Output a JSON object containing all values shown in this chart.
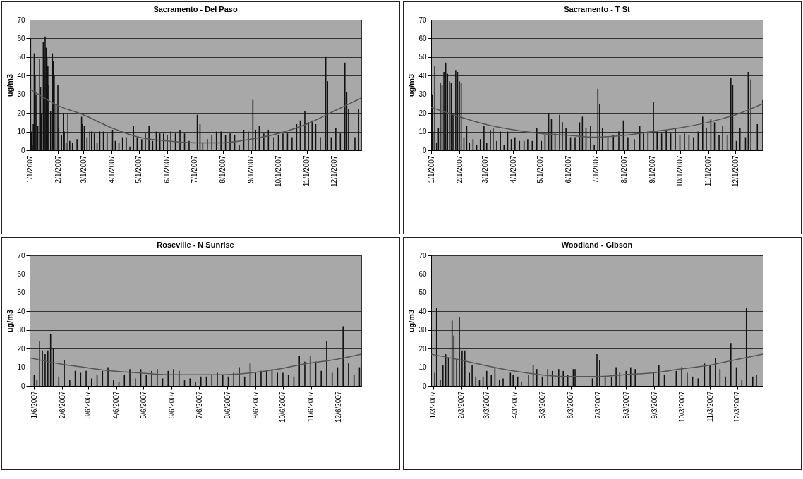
{
  "chart_data": [
    {
      "type": "bar",
      "title": "Sacramento - Del Paso",
      "ylabel": "ug/m3",
      "xlim": [
        "2007-01-01",
        "2007-12-31"
      ],
      "xticks": [
        {
          "value": "2007-01-01",
          "label": "1/1/2007"
        },
        {
          "value": "2007-02-01",
          "label": "2/1/2007"
        },
        {
          "value": "2007-03-01",
          "label": "3/1/2007"
        },
        {
          "value": "2007-04-01",
          "label": "4/1/2007"
        },
        {
          "value": "2007-05-01",
          "label": "5/1/2007"
        },
        {
          "value": "2007-06-01",
          "label": "6/1/2007"
        },
        {
          "value": "2007-07-01",
          "label": "7/1/2007"
        },
        {
          "value": "2007-08-01",
          "label": "8/1/2007"
        },
        {
          "value": "2007-09-01",
          "label": "9/1/2007"
        },
        {
          "value": "2007-10-01",
          "label": "10/1/2007"
        },
        {
          "value": "2007-11-01",
          "label": "11/1/2007"
        },
        {
          "value": "2007-12-01",
          "label": "12/1/2007"
        }
      ],
      "ylim": [
        0,
        70
      ],
      "yticks": [
        0,
        10,
        20,
        30,
        40,
        50,
        60,
        70
      ],
      "grid": "y",
      "x": [
        "2007-01-02",
        "2007-01-03",
        "2007-01-04",
        "2007-01-05",
        "2007-01-06",
        "2007-01-07",
        "2007-01-08",
        "2007-01-10",
        "2007-01-12",
        "2007-01-13",
        "2007-01-14",
        "2007-01-16",
        "2007-01-17",
        "2007-01-18",
        "2007-01-19",
        "2007-01-20",
        "2007-01-21",
        "2007-01-22",
        "2007-01-24",
        "2007-01-26",
        "2007-01-27",
        "2007-01-28",
        "2007-01-30",
        "2007-02-01",
        "2007-02-02",
        "2007-02-05",
        "2007-02-07",
        "2007-02-08",
        "2007-02-10",
        "2007-02-12",
        "2007-02-14",
        "2007-02-17",
        "2007-02-22",
        "2007-02-27",
        "2007-02-28",
        "2007-03-02",
        "2007-03-05",
        "2007-03-08",
        "2007-03-10",
        "2007-03-13",
        "2007-03-16",
        "2007-03-19",
        "2007-03-23",
        "2007-03-27",
        "2007-04-02",
        "2007-04-05",
        "2007-04-09",
        "2007-04-13",
        "2007-04-17",
        "2007-04-21",
        "2007-04-25",
        "2007-04-29",
        "2007-05-04",
        "2007-05-08",
        "2007-05-12",
        "2007-05-16",
        "2007-05-20",
        "2007-05-24",
        "2007-05-28",
        "2007-06-01",
        "2007-06-05",
        "2007-06-10",
        "2007-06-15",
        "2007-06-20",
        "2007-06-25",
        "2007-07-04",
        "2007-07-07",
        "2007-07-10",
        "2007-07-15",
        "2007-07-20",
        "2007-07-25",
        "2007-07-30",
        "2007-08-04",
        "2007-08-09",
        "2007-08-14",
        "2007-08-19",
        "2007-08-24",
        "2007-08-29",
        "2007-09-03",
        "2007-09-06",
        "2007-09-10",
        "2007-09-15",
        "2007-09-20",
        "2007-09-26",
        "2007-10-01",
        "2007-10-06",
        "2007-10-11",
        "2007-10-16",
        "2007-10-21",
        "2007-10-25",
        "2007-10-30",
        "2007-11-03",
        "2007-11-07",
        "2007-11-11",
        "2007-11-16",
        "2007-11-22",
        "2007-11-24",
        "2007-11-28",
        "2007-12-03",
        "2007-12-08",
        "2007-12-13",
        "2007-12-15",
        "2007-12-17",
        "2007-12-24",
        "2007-12-28",
        "2007-12-31"
      ],
      "series": [
        {
          "color": "#111111",
          "values": [
            60,
            10,
            3,
            14,
            52,
            40,
            30,
            13,
            49,
            34,
            20,
            58,
            48,
            61,
            55,
            50,
            45,
            35,
            21,
            52,
            48,
            40,
            25,
            35,
            12,
            8,
            20,
            10,
            4,
            20,
            5,
            4,
            6,
            18,
            14,
            13,
            7,
            10,
            10,
            9,
            4,
            10,
            10,
            9,
            11,
            5,
            4,
            7,
            7,
            2,
            13,
            7,
            6,
            9,
            13,
            5,
            10,
            9,
            9,
            8,
            10,
            9,
            11,
            9,
            5,
            19,
            14,
            4,
            6,
            8,
            10,
            10,
            8,
            9,
            8,
            3,
            11,
            10,
            27,
            11,
            13,
            9,
            11,
            7,
            8,
            9,
            9,
            7,
            14,
            16,
            21,
            15,
            16,
            14,
            7,
            50,
            37,
            7,
            12,
            9,
            47,
            31,
            22,
            7,
            22,
            18
          ]
        },
        {
          "type": "line",
          "color": "#555555",
          "x": [
            "2007-01-01",
            "2007-02-01",
            "2007-03-01",
            "2007-04-01",
            "2007-05-01",
            "2007-06-01",
            "2007-07-01",
            "2007-08-01",
            "2007-09-01",
            "2007-10-01",
            "2007-11-01",
            "2007-12-01",
            "2007-12-31"
          ],
          "values": [
            33,
            24,
            19,
            12,
            7,
            5,
            4,
            4,
            6,
            9,
            14,
            21,
            28
          ]
        }
      ]
    },
    {
      "type": "bar",
      "title": "Sacramento - T St",
      "ylabel": "ug/m3",
      "xlim": [
        "2007-01-01",
        "2007-12-31"
      ],
      "xticks": [
        {
          "value": "2007-01-01",
          "label": "1/1/2007"
        },
        {
          "value": "2007-02-01",
          "label": "2/1/2007"
        },
        {
          "value": "2007-03-01",
          "label": "3/1/2007"
        },
        {
          "value": "2007-04-01",
          "label": "4/1/2007"
        },
        {
          "value": "2007-05-01",
          "label": "5/1/2007"
        },
        {
          "value": "2007-06-01",
          "label": "6/1/2007"
        },
        {
          "value": "2007-07-01",
          "label": "7/1/2007"
        },
        {
          "value": "2007-08-01",
          "label": "8/1/2007"
        },
        {
          "value": "2007-09-01",
          "label": "9/1/2007"
        },
        {
          "value": "2007-10-01",
          "label": "10/1/2007"
        },
        {
          "value": "2007-11-01",
          "label": "11/1/2007"
        },
        {
          "value": "2007-12-01",
          "label": "12/1/2007"
        }
      ],
      "ylim": [
        0,
        70
      ],
      "yticks": [
        0,
        10,
        20,
        30,
        40,
        50,
        60,
        70
      ],
      "grid": "y",
      "x": [
        "2007-01-02",
        "2007-01-03",
        "2007-01-05",
        "2007-01-07",
        "2007-01-09",
        "2007-01-11",
        "2007-01-13",
        "2007-01-15",
        "2007-01-17",
        "2007-01-19",
        "2007-01-21",
        "2007-01-23",
        "2007-01-25",
        "2007-01-28",
        "2007-01-30",
        "2007-02-01",
        "2007-02-03",
        "2007-02-06",
        "2007-02-09",
        "2007-02-12",
        "2007-02-16",
        "2007-02-20",
        "2007-02-24",
        "2007-02-28",
        "2007-03-03",
        "2007-03-07",
        "2007-03-10",
        "2007-03-14",
        "2007-03-18",
        "2007-03-22",
        "2007-03-26",
        "2007-03-30",
        "2007-04-03",
        "2007-04-08",
        "2007-04-13",
        "2007-04-17",
        "2007-04-22",
        "2007-04-27",
        "2007-05-02",
        "2007-05-06",
        "2007-05-10",
        "2007-05-13",
        "2007-05-17",
        "2007-05-22",
        "2007-05-25",
        "2007-05-29",
        "2007-06-03",
        "2007-06-08",
        "2007-06-13",
        "2007-06-16",
        "2007-06-20",
        "2007-06-25",
        "2007-06-29",
        "2007-07-03",
        "2007-07-05",
        "2007-07-08",
        "2007-07-14",
        "2007-07-20",
        "2007-07-26",
        "2007-07-31",
        "2007-08-05",
        "2007-08-12",
        "2007-08-18",
        "2007-08-22",
        "2007-08-27",
        "2007-09-02",
        "2007-09-06",
        "2007-09-11",
        "2007-09-16",
        "2007-09-21",
        "2007-09-26",
        "2007-10-01",
        "2007-10-06",
        "2007-10-11",
        "2007-10-16",
        "2007-10-21",
        "2007-10-26",
        "2007-10-30",
        "2007-11-04",
        "2007-11-08",
        "2007-11-13",
        "2007-11-17",
        "2007-11-22",
        "2007-11-26",
        "2007-11-28",
        "2007-12-02",
        "2007-12-06",
        "2007-12-12",
        "2007-12-15",
        "2007-12-18",
        "2007-12-25",
        "2007-12-31"
      ],
      "series": [
        {
          "color": "#111111",
          "values": [
            30,
            10,
            45,
            4,
            12,
            36,
            35,
            42,
            47,
            41,
            37,
            36,
            20,
            43,
            42,
            37,
            36,
            7,
            13,
            4,
            6,
            3,
            6,
            13,
            4,
            11,
            12,
            5,
            10,
            3,
            10,
            6,
            7,
            5,
            5,
            6,
            5,
            12,
            5,
            8,
            20,
            17,
            9,
            19,
            15,
            12,
            7,
            7,
            15,
            18,
            12,
            13,
            3,
            33,
            25,
            12,
            7,
            8,
            10,
            16,
            7,
            6,
            13,
            9,
            10,
            26,
            10,
            9,
            11,
            9,
            12,
            8,
            9,
            8,
            7,
            10,
            18,
            12,
            17,
            15,
            8,
            13,
            8,
            39,
            35,
            5,
            12,
            7,
            42,
            38,
            14,
            27
          ]
        },
        {
          "type": "line",
          "color": "#555555",
          "x": [
            "2007-01-01",
            "2007-02-01",
            "2007-03-01",
            "2007-04-01",
            "2007-05-01",
            "2007-06-01",
            "2007-07-01",
            "2007-08-01",
            "2007-09-01",
            "2007-10-01",
            "2007-11-01",
            "2007-12-01",
            "2007-12-31"
          ],
          "values": [
            23,
            18,
            14,
            11,
            9,
            8,
            7,
            8,
            10,
            12,
            15,
            19,
            25
          ]
        }
      ]
    },
    {
      "type": "bar",
      "title": "Roseville - N Sunrise",
      "ylabel": "ug/m3",
      "xlim": [
        "2007-01-01",
        "2007-12-31"
      ],
      "xticks": [
        {
          "value": "2007-01-06",
          "label": "1/6/2007"
        },
        {
          "value": "2007-02-06",
          "label": "2/6/2007"
        },
        {
          "value": "2007-03-06",
          "label": "3/6/2007"
        },
        {
          "value": "2007-04-06",
          "label": "4/6/2007"
        },
        {
          "value": "2007-05-06",
          "label": "5/6/2007"
        },
        {
          "value": "2007-06-06",
          "label": "6/6/2007"
        },
        {
          "value": "2007-07-06",
          "label": "7/6/2007"
        },
        {
          "value": "2007-08-06",
          "label": "8/6/2007"
        },
        {
          "value": "2007-09-06",
          "label": "9/6/2007"
        },
        {
          "value": "2007-10-06",
          "label": "10/6/2007"
        },
        {
          "value": "2007-11-06",
          "label": "11/6/2007"
        },
        {
          "value": "2007-12-06",
          "label": "12/6/2007"
        }
      ],
      "ylim": [
        0,
        70
      ],
      "yticks": [
        0,
        10,
        20,
        30,
        40,
        50,
        60,
        70
      ],
      "grid": "y",
      "x": [
        "2007-01-06",
        "2007-01-09",
        "2007-01-12",
        "2007-01-15",
        "2007-01-18",
        "2007-01-21",
        "2007-01-24",
        "2007-01-27",
        "2007-02-02",
        "2007-02-08",
        "2007-02-14",
        "2007-02-20",
        "2007-02-26",
        "2007-03-04",
        "2007-03-10",
        "2007-03-16",
        "2007-03-22",
        "2007-03-28",
        "2007-04-03",
        "2007-04-09",
        "2007-04-15",
        "2007-04-21",
        "2007-04-27",
        "2007-05-03",
        "2007-05-09",
        "2007-05-15",
        "2007-05-21",
        "2007-05-27",
        "2007-06-02",
        "2007-06-08",
        "2007-06-14",
        "2007-06-20",
        "2007-06-26",
        "2007-07-02",
        "2007-07-08",
        "2007-07-14",
        "2007-07-20",
        "2007-07-26",
        "2007-08-01",
        "2007-08-07",
        "2007-08-13",
        "2007-08-19",
        "2007-08-25",
        "2007-08-31",
        "2007-09-06",
        "2007-09-12",
        "2007-09-18",
        "2007-09-24",
        "2007-09-30",
        "2007-10-06",
        "2007-10-12",
        "2007-10-18",
        "2007-10-24",
        "2007-10-30",
        "2007-11-05",
        "2007-11-11",
        "2007-11-17",
        "2007-11-23",
        "2007-11-29",
        "2007-12-05",
        "2007-12-11",
        "2007-12-17",
        "2007-12-23",
        "2007-12-29"
      ],
      "series": [
        {
          "color": "#111111",
          "values": [
            6,
            3,
            24,
            19,
            17,
            19,
            28,
            20,
            5,
            14,
            3,
            8,
            7,
            8,
            4,
            6,
            8,
            10,
            3,
            2,
            6,
            9,
            4,
            9,
            6,
            8,
            9,
            4,
            8,
            9,
            8,
            3,
            4,
            2,
            5,
            5,
            6,
            7,
            6,
            5,
            7,
            10,
            5,
            12,
            7,
            8,
            8,
            9,
            7,
            7,
            6,
            5,
            16,
            13,
            16,
            13,
            8,
            24,
            7,
            10,
            32,
            12,
            6,
            10
          ]
        },
        {
          "type": "line",
          "color": "#555555",
          "x": [
            "2007-01-01",
            "2007-02-01",
            "2007-03-01",
            "2007-04-01",
            "2007-05-01",
            "2007-06-01",
            "2007-07-01",
            "2007-08-01",
            "2007-09-01",
            "2007-10-01",
            "2007-11-01",
            "2007-12-01",
            "2007-12-31"
          ],
          "values": [
            15,
            12,
            10,
            8,
            7,
            6,
            6,
            6,
            7,
            9,
            12,
            14,
            17
          ]
        }
      ]
    },
    {
      "type": "bar",
      "title": "Woodland - Gibson",
      "ylabel": "ug/m3",
      "xlim": [
        "2007-01-01",
        "2007-12-31"
      ],
      "xticks": [
        {
          "value": "2007-01-03",
          "label": "1/3/2007"
        },
        {
          "value": "2007-02-03",
          "label": "2/3/2007"
        },
        {
          "value": "2007-03-03",
          "label": "3/3/2007"
        },
        {
          "value": "2007-04-03",
          "label": "4/3/2007"
        },
        {
          "value": "2007-05-03",
          "label": "5/3/2007"
        },
        {
          "value": "2007-06-03",
          "label": "6/3/2007"
        },
        {
          "value": "2007-07-03",
          "label": "7/3/2007"
        },
        {
          "value": "2007-08-03",
          "label": "8/3/2007"
        },
        {
          "value": "2007-09-03",
          "label": "9/3/2007"
        },
        {
          "value": "2007-10-03",
          "label": "10/3/2007"
        },
        {
          "value": "2007-11-03",
          "label": "11/3/2007"
        },
        {
          "value": "2007-12-03",
          "label": "12/3/2007"
        }
      ],
      "ylim": [
        0,
        70
      ],
      "yticks": [
        0,
        10,
        20,
        30,
        40,
        50,
        60,
        70
      ],
      "grid": "y",
      "x": [
        "2007-01-05",
        "2007-01-07",
        "2007-01-11",
        "2007-01-14",
        "2007-01-17",
        "2007-01-20",
        "2007-01-24",
        "2007-01-26",
        "2007-01-29",
        "2007-02-01",
        "2007-02-04",
        "2007-02-07",
        "2007-02-12",
        "2007-02-15",
        "2007-02-19",
        "2007-02-23",
        "2007-02-27",
        "2007-03-03",
        "2007-03-08",
        "2007-03-12",
        "2007-03-17",
        "2007-03-21",
        "2007-03-29",
        "2007-04-01",
        "2007-04-06",
        "2007-04-10",
        "2007-04-18",
        "2007-04-23",
        "2007-04-27",
        "2007-05-03",
        "2007-05-09",
        "2007-05-14",
        "2007-05-21",
        "2007-05-26",
        "2007-05-31",
        "2007-06-06",
        "2007-06-08",
        "2007-06-27",
        "2007-07-02",
        "2007-07-05",
        "2007-07-11",
        "2007-07-18",
        "2007-07-23",
        "2007-07-27",
        "2007-08-03",
        "2007-08-08",
        "2007-08-13",
        "2007-09-02",
        "2007-09-08",
        "2007-09-14",
        "2007-09-27",
        "2007-10-03",
        "2007-10-09",
        "2007-10-15",
        "2007-10-21",
        "2007-10-28",
        "2007-11-03",
        "2007-11-09",
        "2007-11-14",
        "2007-11-20",
        "2007-11-26",
        "2007-12-02",
        "2007-12-08",
        "2007-12-13",
        "2007-12-20",
        "2007-12-24"
      ],
      "series": [
        {
          "color": "#111111",
          "values": [
            7,
            42,
            3,
            11,
            17,
            15,
            35,
            27,
            14,
            37,
            19,
            19,
            7,
            11,
            5,
            3,
            5,
            8,
            6,
            10,
            3,
            4,
            7,
            6,
            5,
            2,
            6,
            11,
            9,
            5,
            9,
            8,
            9,
            8,
            6,
            9,
            9,
            4,
            17,
            14,
            5,
            5,
            10,
            7,
            8,
            10,
            9,
            7,
            11,
            6,
            8,
            10,
            7,
            5,
            4,
            12,
            11,
            15,
            9,
            5,
            23,
            10,
            3,
            42,
            5,
            6
          ]
        },
        {
          "type": "line",
          "color": "#555555",
          "x": [
            "2007-01-01",
            "2007-02-01",
            "2007-03-01",
            "2007-04-01",
            "2007-05-01",
            "2007-06-01",
            "2007-07-01",
            "2007-08-01",
            "2007-09-01",
            "2007-10-01",
            "2007-11-01",
            "2007-12-01",
            "2007-12-31"
          ],
          "values": [
            17,
            14,
            11,
            8,
            6,
            5,
            5,
            6,
            7,
            9,
            11,
            14,
            17
          ]
        }
      ]
    }
  ]
}
